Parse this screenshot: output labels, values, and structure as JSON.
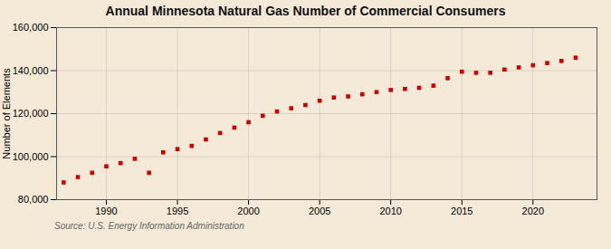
{
  "chart_data": {
    "type": "scatter",
    "title": "Annual Minnesota Natural Gas Number of Commercial Consumers",
    "ylabel": "Number of Elements",
    "source": "Source: U.S. Energy Information Administration",
    "x": [
      1987,
      1988,
      1989,
      1990,
      1991,
      1992,
      1993,
      1994,
      1995,
      1996,
      1997,
      1998,
      1999,
      2000,
      2001,
      2002,
      2003,
      2004,
      2005,
      2006,
      2007,
      2008,
      2009,
      2010,
      2011,
      2012,
      2013,
      2014,
      2015,
      2016,
      2017,
      2018,
      2019,
      2020,
      2021,
      2022,
      2023
    ],
    "values": [
      88000,
      90500,
      92500,
      95500,
      97000,
      99000,
      92500,
      102000,
      103500,
      105000,
      108000,
      111000,
      113500,
      116000,
      119000,
      121000,
      122500,
      124000,
      126000,
      127500,
      128000,
      129000,
      130000,
      131000,
      131500,
      132000,
      133000,
      136500,
      139500,
      139000,
      139000,
      140500,
      141500,
      142500,
      143500,
      144500,
      146000
    ],
    "color": "#cc0000",
    "marker": "square",
    "xlim": [
      1986.5,
      2024.5
    ],
    "xticks": [
      1990,
      1995,
      2000,
      2005,
      2010,
      2015,
      2020
    ],
    "ylim": [
      80000,
      160000
    ],
    "yticks": [
      {
        "value": 80000,
        "label": "80,000"
      },
      {
        "value": 100000,
        "label": "100,000"
      },
      {
        "value": 120000,
        "label": "120,000"
      },
      {
        "value": 140000,
        "label": "140,000"
      },
      {
        "value": 160000,
        "label": "160,000"
      }
    ],
    "grid": true
  }
}
